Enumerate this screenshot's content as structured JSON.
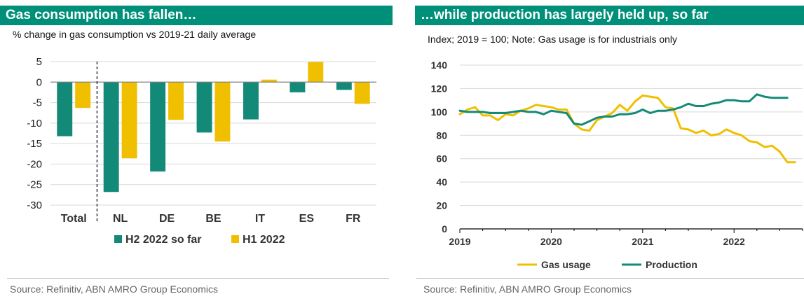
{
  "colors": {
    "banner": "#00907a",
    "teal": "#138a78",
    "gold": "#f0bf00",
    "grid": "#d9d9d9",
    "axis": "#7f7f7f"
  },
  "left": {
    "title": "Gas consumption has fallen…",
    "subtitle": "% change in gas consumption vs 2019-21 daily average",
    "source": "Source: Refinitiv, ABN AMRO Group Economics"
  },
  "right": {
    "title": "…while production has largely held up, so far",
    "subtitle": "Index; 2019 = 100; Note: Gas usage is for industrials only",
    "source": "Source: Refinitiv, ABN AMRO Group Economics"
  },
  "chart_data": [
    {
      "type": "bar",
      "categories": [
        "Total",
        "NL",
        "DE",
        "BE",
        "IT",
        "ES",
        "FR"
      ],
      "series": [
        {
          "name": "H2 2022 so far",
          "color": "#138a78",
          "values": [
            -13.2,
            -26.8,
            -21.8,
            -12.3,
            -9.1,
            -2.5,
            -1.9
          ]
        },
        {
          "name": "H1 2022",
          "color": "#f0bf00",
          "values": [
            -6.3,
            -18.6,
            -9.2,
            -14.5,
            0.6,
            4.9,
            -5.3
          ]
        }
      ],
      "ylim": [
        -30,
        5
      ],
      "yticks": [
        5,
        0,
        -5,
        -10,
        -15,
        -20,
        -25,
        -30
      ],
      "separator_after": "Total",
      "legend_position": "bottom",
      "grid": true
    },
    {
      "type": "line",
      "ylim": [
        0,
        140
      ],
      "yticks": [
        0,
        20,
        40,
        60,
        80,
        100,
        120,
        140
      ],
      "xlim": [
        2019,
        2022.75
      ],
      "xticks": [
        "2019",
        "2020",
        "2021",
        "2022"
      ],
      "legend_position": "bottom",
      "grid": true,
      "series": [
        {
          "name": "Gas usage",
          "color": "#f0bf00",
          "x": [
            2019.0,
            2019.083,
            2019.167,
            2019.25,
            2019.333,
            2019.417,
            2019.5,
            2019.583,
            2019.667,
            2019.75,
            2019.833,
            2019.917,
            2020.0,
            2020.083,
            2020.167,
            2020.25,
            2020.333,
            2020.417,
            2020.5,
            2020.583,
            2020.667,
            2020.75,
            2020.833,
            2020.917,
            2021.0,
            2021.083,
            2021.167,
            2021.25,
            2021.333,
            2021.417,
            2021.5,
            2021.583,
            2021.667,
            2021.75,
            2021.833,
            2021.917,
            2022.0,
            2022.083,
            2022.167,
            2022.25,
            2022.333,
            2022.417,
            2022.5,
            2022.583,
            2022.667
          ],
          "y": [
            98,
            102,
            104,
            97,
            97,
            93,
            98,
            97,
            101,
            103,
            106,
            105,
            104,
            102,
            102,
            90,
            85,
            84,
            93,
            96,
            99,
            106,
            101,
            109,
            114,
            113,
            112,
            104,
            103,
            86,
            85,
            82,
            84,
            80,
            81,
            85,
            82,
            80,
            75,
            74,
            70,
            71,
            66,
            57,
            57
          ]
        },
        {
          "name": "Production",
          "color": "#138a78",
          "x": [
            2019.0,
            2019.083,
            2019.167,
            2019.25,
            2019.333,
            2019.417,
            2019.5,
            2019.583,
            2019.667,
            2019.75,
            2019.833,
            2019.917,
            2020.0,
            2020.083,
            2020.167,
            2020.25,
            2020.333,
            2020.417,
            2020.5,
            2020.583,
            2020.667,
            2020.75,
            2020.833,
            2020.917,
            2021.0,
            2021.083,
            2021.167,
            2021.25,
            2021.333,
            2021.417,
            2021.5,
            2021.583,
            2021.667,
            2021.75,
            2021.833,
            2021.917,
            2022.0,
            2022.083,
            2022.167,
            2022.25,
            2022.333,
            2022.417,
            2022.5,
            2022.583
          ],
          "y": [
            101,
            100,
            100,
            100,
            99,
            99,
            99,
            100,
            101,
            100,
            100,
            98,
            101,
            100,
            99,
            90,
            89,
            92,
            95,
            96,
            96,
            98,
            98,
            99,
            102,
            99,
            101,
            101,
            102,
            104,
            107,
            105,
            105,
            107,
            108,
            110,
            110,
            109,
            109,
            115,
            113,
            112,
            112,
            112
          ]
        }
      ]
    }
  ]
}
